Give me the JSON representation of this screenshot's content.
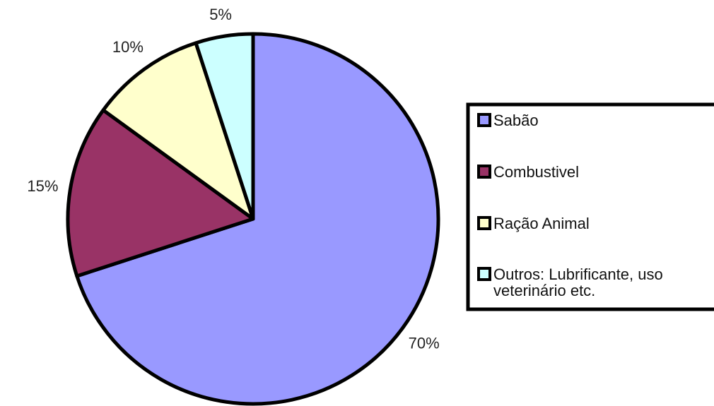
{
  "chart_data": {
    "type": "pie",
    "title": "",
    "slices": [
      {
        "label": "Sabão",
        "value": 70,
        "value_label": "70%",
        "color": "#9999ff"
      },
      {
        "label": "Combustivel",
        "value": 15,
        "value_label": "15%",
        "color": "#993366"
      },
      {
        "label": "Ração Animal",
        "value": 10,
        "value_label": "10%",
        "color": "#ffffcc"
      },
      {
        "label": "Outros: Lubrificante, uso veterinário etc.",
        "value": 5,
        "value_label": "5%",
        "color": "#ccffff"
      }
    ],
    "legend_lines": [
      [
        "Sabão"
      ],
      [
        "Combustivel"
      ],
      [
        "Ração Animal"
      ],
      [
        "Outros: Lubrificante, uso",
        "veterinário etc."
      ]
    ],
    "legend_position": "right",
    "start_angle": "12 o'clock",
    "direction": "clockwise"
  }
}
